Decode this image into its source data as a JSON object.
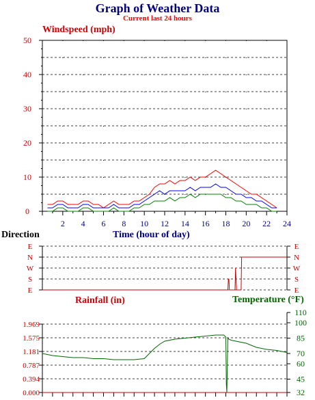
{
  "header": {
    "title": "Graph of Weather Data",
    "subtitle": "Current last 24 hours"
  },
  "colors": {
    "wind_max": "#ff0000",
    "wind_avg": "#0000ff",
    "wind_min": "#008000",
    "axis_red": "#cc0000",
    "axis_green": "#006600",
    "axis_navy": "#000080",
    "direction": "#cc0000",
    "rain": "#cc0000",
    "temperature": "#006600"
  },
  "chart_data": [
    {
      "type": "line",
      "title": "Windspeed (mph)",
      "xlabel": "Time (hour of day)",
      "xlim": [
        0,
        24
      ],
      "ylim": [
        0,
        50
      ],
      "x_ticks": [
        "2",
        "4",
        "6",
        "8",
        "10",
        "12",
        "14",
        "16",
        "18",
        "20",
        "22",
        "24"
      ],
      "y_ticks": [
        "0",
        "10",
        "20",
        "30",
        "40",
        "50"
      ],
      "grid": true,
      "series": [
        {
          "color": "#ff0000",
          "x": [
            0.5,
            1.0,
            1.5,
            2.0,
            2.5,
            3.0,
            3.5,
            4.0,
            4.5,
            5.0,
            5.5,
            6.0,
            6.5,
            7.0,
            7.5,
            8.0,
            8.5,
            9.0,
            9.5,
            10.0,
            10.5,
            11.0,
            11.5,
            12.0,
            12.5,
            13.0,
            13.5,
            14.0,
            14.5,
            15.0,
            15.5,
            16.0,
            16.5,
            17.0,
            17.5,
            18.0,
            18.5,
            19.0,
            19.5,
            20.0,
            20.5,
            21.0,
            21.5,
            22.0,
            22.5,
            23.0
          ],
          "y": [
            2,
            2,
            3,
            3,
            2,
            2,
            2,
            3,
            3,
            2,
            2,
            1,
            2,
            3,
            2,
            2,
            2,
            3,
            3,
            4,
            5,
            7,
            8,
            8,
            9,
            8,
            9,
            9,
            10,
            9,
            10,
            10,
            11,
            12,
            11,
            10,
            9,
            8,
            7,
            6,
            5,
            5,
            4,
            3,
            2,
            1
          ]
        },
        {
          "color": "#0000ff",
          "x": [
            0.5,
            1.0,
            1.5,
            2.0,
            2.5,
            3.0,
            3.5,
            4.0,
            4.5,
            5.0,
            5.5,
            6.0,
            6.5,
            7.0,
            7.5,
            8.0,
            8.5,
            9.0,
            9.5,
            10.0,
            10.5,
            11.0,
            11.5,
            12.0,
            12.5,
            13.0,
            13.5,
            14.0,
            14.5,
            15.0,
            15.5,
            16.0,
            16.5,
            17.0,
            17.5,
            18.0,
            18.5,
            19.0,
            19.5,
            20.0,
            20.5,
            21.0,
            21.5,
            22.0,
            22.5,
            23.0
          ],
          "y": [
            1,
            1,
            2,
            2,
            1,
            1,
            1,
            2,
            2,
            1,
            1,
            1,
            1,
            2,
            1,
            1,
            1,
            2,
            2,
            3,
            4,
            5,
            6,
            5,
            6,
            6,
            6,
            6,
            7,
            6,
            7,
            7,
            7,
            8,
            7,
            7,
            6,
            5,
            5,
            4,
            4,
            3,
            3,
            2,
            1,
            1
          ]
        },
        {
          "color": "#008000",
          "x": [
            0.5,
            1.0,
            1.5,
            2.0,
            2.5,
            3.0,
            3.5,
            4.0,
            4.5,
            5.0,
            5.5,
            6.0,
            6.5,
            7.0,
            7.5,
            8.0,
            8.5,
            9.0,
            9.5,
            10.0,
            10.5,
            11.0,
            11.5,
            12.0,
            12.5,
            13.0,
            13.5,
            14.0,
            14.5,
            15.0,
            15.5,
            16.0,
            16.5,
            17.0,
            17.5,
            18.0,
            18.5,
            19.0,
            19.5,
            20.0,
            20.5,
            21.0,
            21.5,
            22.0,
            22.5,
            23.0
          ],
          "y": [
            0,
            0,
            1,
            1,
            0,
            0,
            0,
            1,
            1,
            0,
            0,
            0,
            0,
            1,
            0,
            0,
            0,
            1,
            1,
            2,
            2,
            3,
            3,
            3,
            4,
            3,
            4,
            4,
            5,
            4,
            5,
            5,
            5,
            5,
            5,
            4,
            4,
            3,
            3,
            2,
            2,
            2,
            1,
            1,
            0,
            0
          ]
        }
      ]
    },
    {
      "type": "line",
      "title": "Direction",
      "xlim": [
        0,
        24
      ],
      "y_ticks": [
        "E",
        "N",
        "W",
        "S",
        "E"
      ],
      "series": [
        {
          "color": "#cc0000",
          "x": [
            0,
            18.2,
            18.25,
            18.3,
            18.35,
            18.4,
            18.9,
            18.95,
            19.0,
            19.05,
            19.1,
            19.5,
            19.55,
            19.6,
            19.7,
            20.5,
            20.6,
            21.0,
            21.1,
            21.5,
            21.6,
            24
          ],
          "y": [
            "E",
            "E",
            "S",
            "S",
            "E",
            "E",
            "E",
            "W",
            "S",
            "E",
            "E",
            "E",
            "N",
            "N",
            "N",
            "N",
            "N",
            "N",
            "N",
            "N",
            "N",
            "N"
          ]
        }
      ]
    },
    {
      "type": "line",
      "title": "Rainfall (in)",
      "xlim": [
        0,
        24
      ],
      "ylim": [
        0,
        1.969
      ],
      "y_ticks": [
        "0.000",
        "0.394",
        "0.787",
        "1.181",
        "1.575",
        "1.969"
      ],
      "series": [
        {
          "color": "#cc0000",
          "x": [
            0,
            24
          ],
          "y": [
            0,
            0
          ]
        }
      ]
    },
    {
      "type": "line",
      "title": "Temperature (°F)",
      "xlim": [
        0,
        24
      ],
      "ylim": [
        32,
        110
      ],
      "y_ticks": [
        "32",
        "45",
        "60",
        "70",
        "85",
        "100",
        "110"
      ],
      "series": [
        {
          "color": "#006600",
          "x": [
            0,
            1,
            2,
            3,
            4,
            5,
            6,
            7,
            8,
            9,
            10,
            10.5,
            11,
            11.5,
            12,
            13,
            14,
            15,
            16,
            17,
            17.8,
            18.0,
            18.05,
            18.1,
            18.15,
            18.2,
            18.3,
            18.5,
            19,
            20,
            21,
            22,
            23,
            24
          ],
          "y": [
            70,
            68,
            67,
            66,
            66,
            65,
            65,
            64,
            64,
            64,
            65,
            70,
            75,
            79,
            82,
            84,
            85,
            86,
            87,
            88,
            88,
            86,
            40,
            32,
            60,
            85,
            84,
            83,
            82,
            80,
            76,
            74,
            73,
            71
          ]
        }
      ]
    }
  ],
  "labels": {
    "windspeed": "Windspeed (mph)",
    "time": "Time (hour of day)",
    "direction": "Direction",
    "rainfall": "Rainfall (in)",
    "temperature": "Temperature (°F)"
  }
}
